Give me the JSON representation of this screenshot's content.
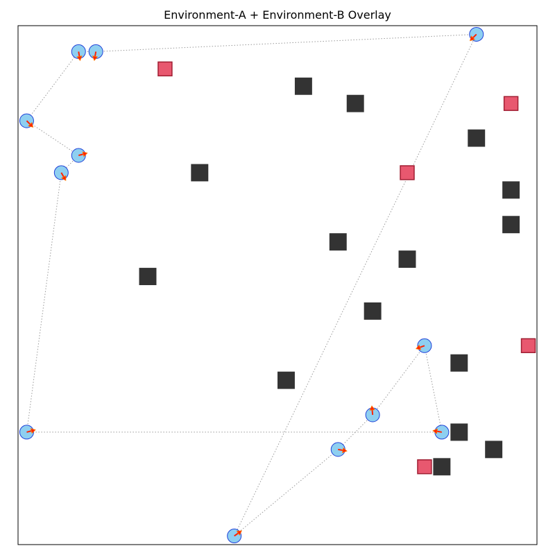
{
  "title": "Environment-A + Environment-B Overlay",
  "colors": {
    "obstacle": "#333333",
    "goal_fill": "#e8586f",
    "goal_edge": "#a01e32",
    "agent_fill": "#8ecff0",
    "agent_edge": "#1f3fd8",
    "heading": "#ff2200",
    "path": "#999999"
  },
  "field": {
    "xmin": 0,
    "xmax": 30,
    "ymin": 0,
    "ymax": 30
  },
  "obstacles": [
    {
      "x": 16.5,
      "y": 26.5
    },
    {
      "x": 19.5,
      "y": 25.5
    },
    {
      "x": 26.5,
      "y": 23.5
    },
    {
      "x": 10.5,
      "y": 21.5
    },
    {
      "x": 28.5,
      "y": 20.5
    },
    {
      "x": 28.5,
      "y": 18.5
    },
    {
      "x": 18.5,
      "y": 17.5
    },
    {
      "x": 22.5,
      "y": 16.5
    },
    {
      "x": 7.5,
      "y": 15.5
    },
    {
      "x": 20.5,
      "y": 13.5
    },
    {
      "x": 25.5,
      "y": 10.5
    },
    {
      "x": 15.5,
      "y": 9.5
    },
    {
      "x": 25.5,
      "y": 6.5
    },
    {
      "x": 27.5,
      "y": 5.5
    },
    {
      "x": 24.5,
      "y": 4.5
    }
  ],
  "goals": [
    {
      "x": 8.5,
      "y": 27.5
    },
    {
      "x": 28.5,
      "y": 25.5
    },
    {
      "x": 22.5,
      "y": 21.5
    },
    {
      "x": 29.5,
      "y": 11.5
    },
    {
      "x": 23.5,
      "y": 4.5
    }
  ],
  "paths": [
    [
      {
        "x": 26.5,
        "y": 29.5,
        "heading": 225
      },
      {
        "x": 4.5,
        "y": 28.5,
        "heading": 260
      },
      {
        "x": 3.5,
        "y": 28.5,
        "heading": 280
      },
      {
        "x": 0.5,
        "y": 24.5,
        "heading": 315
      },
      {
        "x": 3.5,
        "y": 22.5,
        "heading": 15
      },
      {
        "x": 2.5,
        "y": 21.5,
        "heading": 300
      },
      {
        "x": 0.5,
        "y": 6.5,
        "heading": 15
      }
    ],
    [
      {
        "x": 24.5,
        "y": 6.5,
        "heading": 170
      },
      {
        "x": 0.5,
        "y": 6.5,
        "heading": 15
      }
    ],
    [
      {
        "x": 23.5,
        "y": 11.5,
        "heading": 200
      },
      {
        "x": 24.5,
        "y": 6.5,
        "heading": 170
      }
    ],
    [
      {
        "x": 23.5,
        "y": 11.5,
        "heading": 200
      },
      {
        "x": 20.5,
        "y": 7.5,
        "heading": 95
      },
      {
        "x": 18.5,
        "y": 5.5,
        "heading": 350
      },
      {
        "x": 12.5,
        "y": 0.5,
        "heading": 35
      },
      {
        "x": 26.5,
        "y": 29.5,
        "heading": 225
      }
    ]
  ]
}
